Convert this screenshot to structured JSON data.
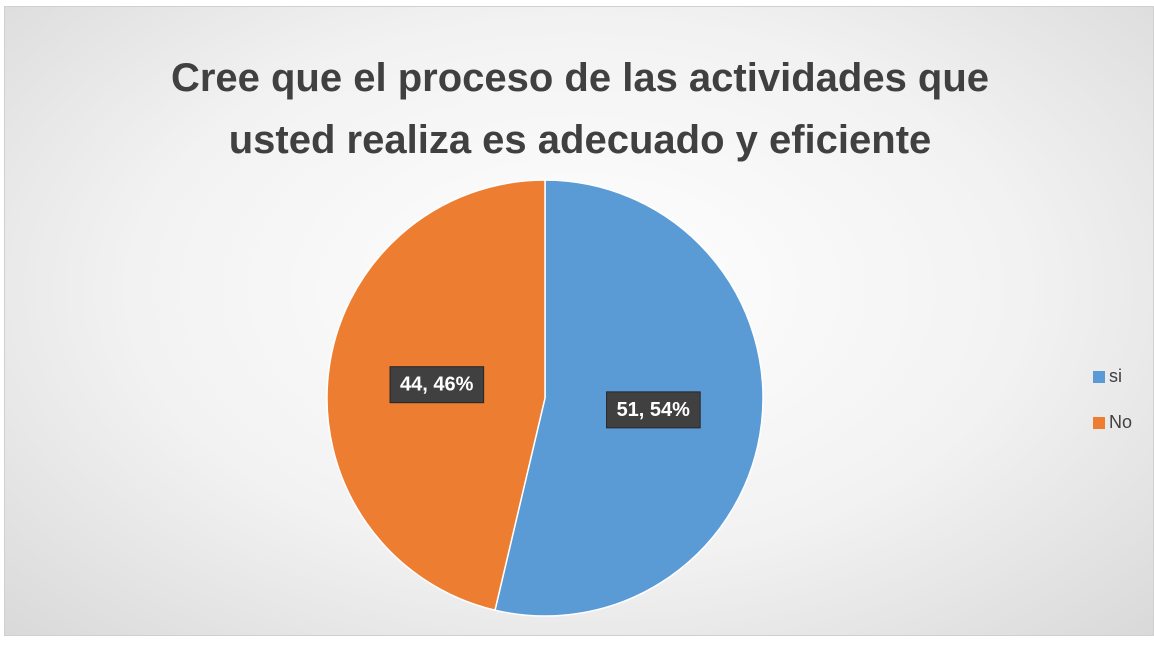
{
  "chart_data": {
    "type": "pie",
    "title": "Cree que el proceso de las actividades que usted realiza es adecuado y eficiente",
    "categories": [
      "si",
      "No"
    ],
    "values": [
      51,
      44
    ],
    "value_labels": [
      "51, 54%",
      "44, 46%"
    ],
    "colors": [
      "#5b9bd5",
      "#ed7d31"
    ],
    "legend": "right"
  }
}
